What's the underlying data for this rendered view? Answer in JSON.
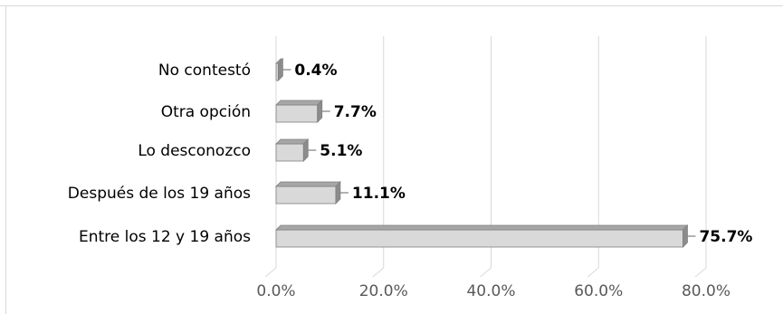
{
  "chart_data": {
    "type": "bar",
    "orientation": "horizontal",
    "style": "3d",
    "categories": [
      "No contestó",
      "Otra opción",
      "Lo desconozco",
      "Después de los 19 años",
      "Entre los 12 y 19 años"
    ],
    "values": [
      0.4,
      7.7,
      5.1,
      11.1,
      75.7
    ],
    "value_labels": [
      "0.4%",
      "7.7%",
      "5.1%",
      "11.1%",
      "75.7%"
    ],
    "xlim": [
      0,
      80
    ],
    "x_ticks": [
      0,
      20,
      40,
      60,
      80
    ],
    "x_tick_labels": [
      "0.0%",
      "20.0%",
      "40.0%",
      "60.0%",
      "80.0%"
    ],
    "title": "",
    "xlabel": "",
    "ylabel": "",
    "grid": "vertical",
    "legend": "none",
    "colors": {
      "bar_face": "#d9d9d9",
      "bar_top": "#a6a6a6",
      "bar_end": "#8c8c8c",
      "bar_edge": "#7f7f7f",
      "grid": "#d9d9d9",
      "frame": "#d9d9d9",
      "axis_text": "#595959",
      "category_text": "#000000",
      "value_text": "#000000"
    }
  }
}
